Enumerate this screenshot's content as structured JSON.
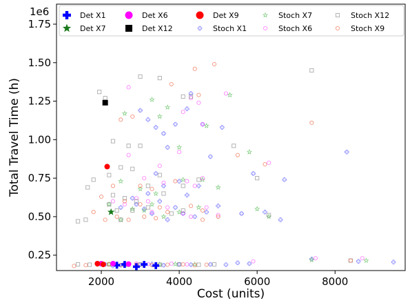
{
  "chart_data": {
    "type": "scatter",
    "xlabel": "Cost (units)",
    "ylabel": "Total Travel Time (h)",
    "y_offset_label": "1e6",
    "xlim": [
      850,
      9800
    ],
    "ylim": [
      150000,
      1880000
    ],
    "x_ticks": [
      2000,
      4000,
      6000,
      8000
    ],
    "x_tick_labels": [
      "2000",
      "4000",
      "6000",
      "8000"
    ],
    "y_ticks": [
      250000,
      500000,
      750000,
      1000000,
      1250000,
      1500000,
      1750000
    ],
    "y_tick_labels": [
      "0.25",
      "0.50",
      "0.75",
      "1.00",
      "1.25",
      "1.50",
      "1.75"
    ],
    "legend_position": "top",
    "series": [
      {
        "name": "Det X1",
        "marker": "plus",
        "color": "#0000ff",
        "filled": true,
        "points": [
          [
            2400,
            185000
          ],
          [
            2600,
            190000
          ],
          [
            2900,
            175000
          ],
          [
            3100,
            190000
          ],
          [
            3400,
            182000
          ]
        ]
      },
      {
        "name": "Det X7",
        "marker": "star",
        "color": "#1a7a1a",
        "filled": true,
        "points": [
          [
            2250,
            530000
          ]
        ]
      },
      {
        "name": "Det X6",
        "marker": "circle",
        "color": "#ff00ff",
        "filled": true,
        "points": [
          [
            2000,
            195000
          ],
          [
            2300,
            195000
          ],
          [
            2700,
            192000
          ]
        ]
      },
      {
        "name": "Det X12",
        "marker": "square",
        "color": "#000000",
        "filled": true,
        "points": [
          [
            2100,
            1240000
          ]
        ]
      },
      {
        "name": "Det X9",
        "marker": "circle",
        "color": "#ff0000",
        "filled": true,
        "points": [
          [
            2150,
            825000
          ],
          [
            1900,
            195000
          ],
          [
            2050,
            190000
          ]
        ]
      },
      {
        "name": "Stoch X1",
        "marker": "plus",
        "color": "#5555ff",
        "filled": false,
        "points": [
          [
            3000,
            1190000
          ],
          [
            3200,
            1130000
          ],
          [
            3400,
            1080000
          ],
          [
            3600,
            1040000
          ],
          [
            3900,
            1100000
          ],
          [
            4200,
            1200000
          ],
          [
            4300,
            1300000
          ],
          [
            4600,
            1100000
          ],
          [
            5100,
            1080000
          ],
          [
            4800,
            890000
          ],
          [
            5900,
            780000
          ],
          [
            6700,
            740000
          ],
          [
            8300,
            920000
          ],
          [
            9500,
            205000
          ],
          [
            8600,
            210000
          ],
          [
            7400,
            225000
          ],
          [
            5500,
            200000
          ],
          [
            5800,
            195000
          ],
          [
            2500,
            560000
          ],
          [
            2900,
            580000
          ],
          [
            3100,
            550000
          ],
          [
            3300,
            520000
          ],
          [
            3500,
            600000
          ],
          [
            3700,
            480000
          ],
          [
            3900,
            560000
          ],
          [
            4100,
            520000
          ],
          [
            4400,
            500000
          ],
          [
            4700,
            530000
          ],
          [
            5000,
            570000
          ],
          [
            5600,
            520000
          ],
          [
            6200,
            530000
          ],
          [
            6600,
            480000
          ],
          [
            3200,
            650000
          ],
          [
            3600,
            700000
          ],
          [
            4000,
            730000
          ],
          [
            4200,
            640000
          ],
          [
            4500,
            700000
          ],
          [
            2800,
            620000
          ],
          [
            3400,
            780000
          ],
          [
            3700,
            950000
          ],
          [
            2100,
            190000
          ],
          [
            2300,
            180000
          ],
          [
            2500,
            185000
          ],
          [
            2700,
            190000
          ],
          [
            3000,
            188000
          ],
          [
            3300,
            192000
          ],
          [
            3600,
            185000
          ],
          [
            4000,
            190000
          ],
          [
            4300,
            188000
          ],
          [
            4800,
            190000
          ],
          [
            5200,
            188000
          ]
        ]
      },
      {
        "name": "Stoch X7",
        "marker": "star",
        "color": "#55bb55",
        "filled": false,
        "points": [
          [
            2600,
            1170000
          ],
          [
            3300,
            1260000
          ],
          [
            3700,
            1210000
          ],
          [
            3500,
            1150000
          ],
          [
            4700,
            1090000
          ],
          [
            4000,
            950000
          ],
          [
            5300,
            1290000
          ],
          [
            5800,
            920000
          ],
          [
            2500,
            730000
          ],
          [
            3000,
            680000
          ],
          [
            3400,
            650000
          ],
          [
            4100,
            740000
          ],
          [
            4600,
            740000
          ],
          [
            5000,
            690000
          ],
          [
            2200,
            580000
          ],
          [
            2500,
            480000
          ],
          [
            2800,
            550000
          ],
          [
            3100,
            540000
          ],
          [
            3300,
            580000
          ],
          [
            3600,
            500000
          ],
          [
            4000,
            530000
          ],
          [
            4500,
            560000
          ],
          [
            6000,
            550000
          ],
          [
            6300,
            500000
          ],
          [
            7400,
            220000
          ],
          [
            8800,
            215000
          ],
          [
            2000,
            190000
          ],
          [
            2200,
            192000
          ],
          [
            2700,
            188000
          ],
          [
            3100,
            190000
          ],
          [
            3500,
            190000
          ],
          [
            3900,
            192000
          ],
          [
            4400,
            190000
          ]
        ]
      },
      {
        "name": "Stoch X6",
        "marker": "circle",
        "color": "#ff55ff",
        "filled": false,
        "points": [
          [
            2700,
            1340000
          ],
          [
            4300,
            1270000
          ],
          [
            4500,
            1240000
          ],
          [
            4100,
            1180000
          ],
          [
            4600,
            1100000
          ],
          [
            5200,
            1300000
          ],
          [
            4000,
            920000
          ],
          [
            3500,
            830000
          ],
          [
            2700,
            900000
          ],
          [
            3100,
            750000
          ],
          [
            3600,
            720000
          ],
          [
            4200,
            730000
          ],
          [
            4400,
            700000
          ],
          [
            4600,
            750000
          ],
          [
            2300,
            600000
          ],
          [
            2600,
            580000
          ],
          [
            2900,
            620000
          ],
          [
            3200,
            600000
          ],
          [
            3300,
            530000
          ],
          [
            3700,
            560000
          ],
          [
            4100,
            520000
          ],
          [
            4300,
            500000
          ],
          [
            4700,
            560000
          ],
          [
            5000,
            510000
          ],
          [
            6300,
            850000
          ],
          [
            7500,
            230000
          ],
          [
            8700,
            230000
          ],
          [
            2300,
            195000
          ],
          [
            2600,
            192000
          ],
          [
            2900,
            195000
          ],
          [
            3200,
            192000
          ],
          [
            3800,
            195000
          ],
          [
            4200,
            190000
          ],
          [
            5900,
            210000
          ]
        ]
      },
      {
        "name": "Stoch X12",
        "marker": "square",
        "color": "#888888",
        "filled": false,
        "points": [
          [
            1950,
            1310000
          ],
          [
            2100,
            1270000
          ],
          [
            3000,
            1410000
          ],
          [
            3500,
            1400000
          ],
          [
            4100,
            1280000
          ],
          [
            4300,
            1280000
          ],
          [
            4900,
            1720000
          ],
          [
            7400,
            1450000
          ],
          [
            2700,
            960000
          ],
          [
            3000,
            960000
          ],
          [
            2300,
            990000
          ],
          [
            5400,
            960000
          ],
          [
            1800,
            740000
          ],
          [
            1650,
            690000
          ],
          [
            2200,
            770000
          ],
          [
            2500,
            820000
          ],
          [
            2800,
            810000
          ],
          [
            3500,
            770000
          ],
          [
            3200,
            700000
          ],
          [
            3600,
            650000
          ],
          [
            4100,
            700000
          ],
          [
            4500,
            740000
          ],
          [
            2300,
            640000
          ],
          [
            2600,
            620000
          ],
          [
            2900,
            600000
          ],
          [
            2200,
            580000
          ],
          [
            2400,
            540000
          ],
          [
            2800,
            540000
          ],
          [
            3200,
            560000
          ],
          [
            3800,
            520000
          ],
          [
            4100,
            540000
          ],
          [
            1400,
            470000
          ],
          [
            1600,
            480000
          ],
          [
            2500,
            480000
          ],
          [
            6000,
            750000
          ],
          [
            6300,
            510000
          ],
          [
            8400,
            215000
          ],
          [
            1400,
            190000
          ],
          [
            1700,
            188000
          ],
          [
            2200,
            190000
          ],
          [
            2600,
            188000
          ],
          [
            3000,
            190000
          ],
          [
            3500,
            188000
          ],
          [
            4000,
            190000
          ],
          [
            4500,
            188000
          ],
          [
            4900,
            190000
          ]
        ]
      },
      {
        "name": "Stoch X9",
        "marker": "circle",
        "color": "#ee6644",
        "filled": false,
        "points": [
          [
            4900,
            1490000
          ],
          [
            4400,
            1460000
          ],
          [
            3800,
            1360000
          ],
          [
            4500,
            1290000
          ],
          [
            2500,
            1130000
          ],
          [
            2800,
            1150000
          ],
          [
            5500,
            900000
          ],
          [
            6200,
            840000
          ],
          [
            7400,
            1110000
          ],
          [
            3900,
            730000
          ],
          [
            2300,
            700000
          ],
          [
            3000,
            700000
          ],
          [
            3300,
            680000
          ],
          [
            2000,
            630000
          ],
          [
            2600,
            600000
          ],
          [
            3000,
            580000
          ],
          [
            3500,
            560000
          ],
          [
            3700,
            530000
          ],
          [
            4300,
            570000
          ],
          [
            4600,
            540000
          ],
          [
            5000,
            500000
          ],
          [
            1800,
            530000
          ],
          [
            2100,
            480000
          ],
          [
            2400,
            500000
          ],
          [
            2700,
            480000
          ],
          [
            3100,
            500000
          ],
          [
            3400,
            490000
          ],
          [
            4600,
            480000
          ],
          [
            1300,
            180000
          ],
          [
            1600,
            185000
          ],
          [
            1900,
            188000
          ],
          [
            2200,
            190000
          ],
          [
            2500,
            185000
          ],
          [
            2900,
            188000
          ],
          [
            3300,
            185000
          ],
          [
            3700,
            188000
          ],
          [
            4100,
            190000
          ],
          [
            4400,
            185000
          ],
          [
            4700,
            188000
          ],
          [
            8400,
            215000
          ]
        ]
      }
    ]
  }
}
